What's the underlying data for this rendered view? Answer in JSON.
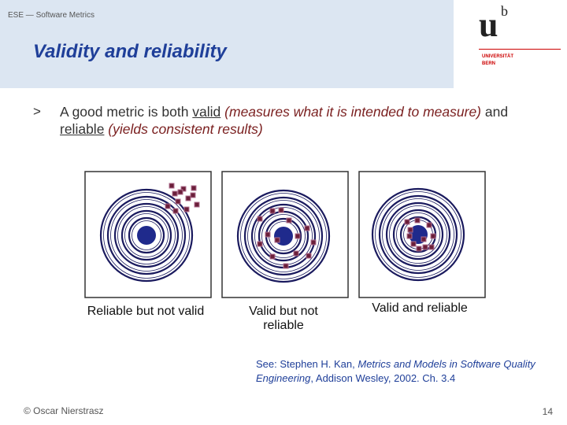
{
  "header": {
    "course": "ESE — Software Metrics",
    "title": "Validity and reliability"
  },
  "logo": {
    "u": "u",
    "b": "b",
    "line1": "UNIVERSITÄT",
    "line2": "BERN"
  },
  "bullet": {
    "marker": ">",
    "parts": [
      "A good metric is both ",
      "valid",
      " (measures what it is intended to measure)",
      " and ",
      "reliable",
      " (yields consistent results)"
    ]
  },
  "captions": [
    "Reliable but not valid",
    "Valid but not reliable",
    "Valid and reliable"
  ],
  "reference": {
    "prefix": "See: Stephen H. Kan, ",
    "book": "Metrics and Models in Software Quality Engineering",
    "suffix": ", Addison Wesley, 2002. Ch. 3.4"
  },
  "footer": {
    "author": "© Oscar Nierstrasz",
    "page": "14"
  }
}
